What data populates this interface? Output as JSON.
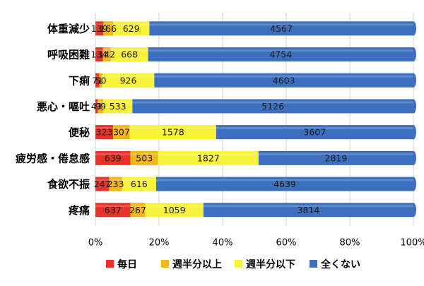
{
  "chart_data": {
    "type": "bar",
    "orientation": "horizontal",
    "stacked": "percent",
    "categories": [
      "体重減少",
      "呼吸困難",
      "下痢",
      "悪心・嘔吐",
      "便秘",
      "疲労感・倦怠感",
      "食欲不振",
      "疼痛"
    ],
    "series": [
      {
        "name": "毎日",
        "color": "#e8312a",
        "values": [
          139,
          134,
          71,
          43,
          323,
          639,
          247,
          637
        ]
      },
      {
        "name": "週半分以上",
        "color": "#f2b51c",
        "values": [
          166,
          142,
          50,
          99,
          307,
          503,
          233,
          267
        ]
      },
      {
        "name": "週半分以下",
        "color": "#f8f23a",
        "values": [
          629,
          668,
          926,
          533,
          1578,
          1827,
          616,
          1059
        ]
      },
      {
        "name": "全くない",
        "color": "#3d6fbf",
        "values": [
          4567,
          4754,
          4603,
          5126,
          3607,
          2819,
          4639,
          3814
        ]
      }
    ],
    "x_ticks": [
      "0%",
      "20%",
      "40%",
      "60%",
      "80%",
      "100%"
    ],
    "xlim": [
      0,
      100
    ],
    "grid": true,
    "legend": "bottom"
  }
}
